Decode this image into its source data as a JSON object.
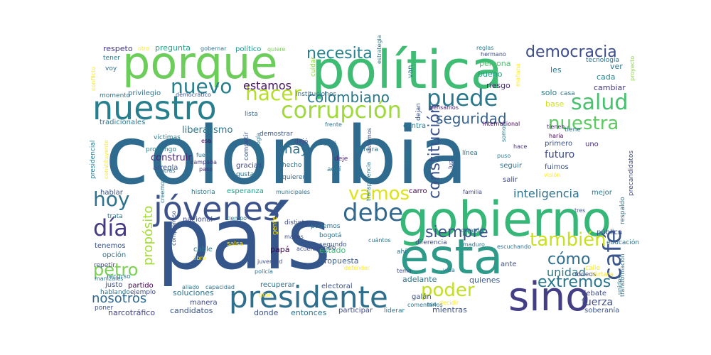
{
  "words": [
    {
      "text": "país",
      "color": "#34568b"
    },
    {
      "text": "colombia",
      "color": "#2e6b8e"
    },
    {
      "text": "gobierno",
      "color": "#35b778"
    },
    {
      "text": "política",
      "color": "#3fbc73"
    },
    {
      "text": "porque",
      "color": "#6ccd5a"
    },
    {
      "text": "esta",
      "color": "#2e9a8a"
    },
    {
      "text": "sino",
      "color": "#433e85"
    },
    {
      "text": "presidente",
      "color": "#2e6f8e"
    },
    {
      "text": "jóvenes",
      "color": "#3b528b"
    },
    {
      "text": "nuestro",
      "color": "#277f8e"
    },
    {
      "text": "corrupción",
      "color": "#9fda3a"
    },
    {
      "text": "debe",
      "color": "#31688e"
    },
    {
      "text": "café",
      "color": "#3a548c"
    },
    {
      "text": "nuestra",
      "color": "#5ec962"
    },
    {
      "text": "salud",
      "color": "#48c16e"
    },
    {
      "text": "hacer",
      "color": "#b5de2b"
    },
    {
      "text": "nuevo",
      "color": "#277f8e"
    },
    {
      "text": "vamos",
      "color": "#dde318"
    },
    {
      "text": "también",
      "color": "#c8e020"
    },
    {
      "text": "día",
      "color": "#443a83"
    },
    {
      "text": "puede",
      "color": "#2a788e"
    },
    {
      "text": "petro",
      "color": "#7ad151"
    },
    {
      "text": "poder",
      "color": "#c2df23"
    },
    {
      "text": "hoy",
      "color": "#2c728e"
    },
    {
      "text": "necesita",
      "color": "#26828e"
    },
    {
      "text": "democracia",
      "color": "#3d4d8a"
    },
    {
      "text": "colombiano",
      "color": "#2a788e"
    },
    {
      "text": "constitución",
      "color": "#3a538b"
    },
    {
      "text": "seguridad",
      "color": "#355f8d"
    },
    {
      "text": "siempre",
      "color": "#3b528b"
    },
    {
      "text": "extremos",
      "color": "#2a768e"
    },
    {
      "text": "propósito",
      "color": "#a5db36"
    },
    {
      "text": "cómo",
      "color": "#2f6c8e"
    },
    {
      "text": "inteligencia",
      "color": "#2c728e"
    },
    {
      "text": "nosotros",
      "color": "#31688e"
    },
    {
      "text": "estamos",
      "color": "#471365"
    },
    {
      "text": "hay",
      "color": "#2d708e"
    },
    {
      "text": "unidad",
      "color": "#2a788e"
    },
    {
      "text": "liberalismo",
      "color": "#2a768e"
    },
    {
      "text": "construir",
      "color": "#482576"
    },
    {
      "text": "futuro",
      "color": "#3e4a89"
    },
    {
      "text": "fuerza",
      "color": "#3e4a89"
    },
    {
      "text": "candidatos",
      "color": "#3a538b"
    },
    {
      "text": "narcotráfico",
      "color": "#424186"
    },
    {
      "text": "mientras",
      "color": "#3b528b"
    },
    {
      "text": "soluciones",
      "color": "#2c728e"
    },
    {
      "text": "adelante",
      "color": "#2b758e"
    },
    {
      "text": "quienes",
      "color": "#38598c"
    },
    {
      "text": "estado",
      "color": "#3bbb75"
    },
    {
      "text": "propuesta",
      "color": "#38598c"
    },
    {
      "text": "papá",
      "color": "#440154"
    },
    {
      "text": "pregunta",
      "color": "#20a486"
    },
    {
      "text": "respeto",
      "color": "#443983"
    },
    {
      "text": "gobernar",
      "color": "#2b748e"
    },
    {
      "text": "político",
      "color": "#20928c"
    },
    {
      "text": "quiere",
      "color": "#7ad151"
    },
    {
      "text": "estrategia",
      "color": "#2a788e"
    },
    {
      "text": "reglas",
      "color": "#287c8e"
    },
    {
      "text": "hermano",
      "color": "#3e4a89"
    },
    {
      "text": "persona",
      "color": "#4cc26c"
    },
    {
      "text": "bueno",
      "color": "#1f9f88"
    },
    {
      "text": "riesgo",
      "color": "#482475"
    },
    {
      "text": "cada",
      "color": "#26828e"
    },
    {
      "text": "solo",
      "color": "#27808e"
    },
    {
      "text": "casa",
      "color": "#2c728e"
    },
    {
      "text": "base",
      "color": "#d0e11c"
    },
    {
      "text": "les",
      "color": "#2a788e"
    },
    {
      "text": "ver",
      "color": "#2b758e"
    },
    {
      "text": "tecnología",
      "color": "#2e6e8e"
    },
    {
      "text": "cambiar",
      "color": "#453781"
    },
    {
      "text": "proyecto",
      "color": "#8bd646"
    },
    {
      "text": "conflicto",
      "color": "#fde725"
    },
    {
      "text": "tener",
      "color": "#2a788e"
    },
    {
      "text": "voy",
      "color": "#31688e"
    },
    {
      "text": "momento",
      "color": "#2b748e"
    },
    {
      "text": "privilegio",
      "color": "#2c728e"
    },
    {
      "text": "democrático",
      "color": "#3b528b"
    },
    {
      "text": "tradicionales",
      "color": "#2a788e"
    },
    {
      "text": "lista",
      "color": "#31688e"
    },
    {
      "text": "instituciones",
      "color": "#2c728e"
    },
    {
      "text": "cuidar",
      "color": "#8bd646"
    },
    {
      "text": "otro",
      "color": "#fde725"
    },
    {
      "text": "van",
      "color": "#2b748e"
    },
    {
      "text": "mañana",
      "color": "#fde725"
    },
    {
      "text": "pensamos",
      "color": "#482173"
    },
    {
      "text": "dejan",
      "color": "#3b528b"
    },
    {
      "text": "frente",
      "color": "#2c728e"
    },
    {
      "text": "contra",
      "color": "#287c8e"
    },
    {
      "text": "internacional",
      "color": "#440154"
    },
    {
      "text": "tiene",
      "color": "#31688e"
    },
    {
      "text": "tienen",
      "color": "#482878"
    },
    {
      "text": "haría",
      "color": "#440154"
    },
    {
      "text": "primero",
      "color": "#3b528b"
    },
    {
      "text": "uno",
      "color": "#472d7b"
    },
    {
      "text": "precandidatos",
      "color": "#3e4a89"
    },
    {
      "text": "respaldo",
      "color": "#2c728e"
    },
    {
      "text": "presidencial",
      "color": "#2a788e"
    },
    {
      "text": "constituyente",
      "color": "#fde725"
    },
    {
      "text": "víctimas",
      "color": "#2a788e"
    },
    {
      "text": "propongo",
      "color": "#287c8e"
    },
    {
      "text": "arregla",
      "color": "#3a548c"
    },
    {
      "text": "fuera",
      "color": "#2a788e"
    },
    {
      "text": "campaña",
      "color": "#443983"
    },
    {
      "text": "paso",
      "color": "#472d7b"
    },
    {
      "text": "atrás",
      "color": "#2c728e"
    },
    {
      "text": "esa",
      "color": "#440154"
    },
    {
      "text": "competir",
      "color": "#3b528b"
    },
    {
      "text": "metodología",
      "color": "#2a788e"
    },
    {
      "text": "demostrar",
      "color": "#39568c"
    },
    {
      "text": "dejó",
      "color": "#3e4a89"
    },
    {
      "text": "gracias",
      "color": "#3f4889"
    },
    {
      "text": "hecho",
      "color": "#2c728e"
    },
    {
      "text": "salió",
      "color": "#2c728e"
    },
    {
      "text": "deje",
      "color": "#482878"
    },
    {
      "text": "aquí",
      "color": "#2c728e"
    },
    {
      "text": "gustavo",
      "color": "#2c728e"
    },
    {
      "text": "quieren",
      "color": "#31688e"
    },
    {
      "text": "pereira",
      "color": "#2c728e"
    },
    {
      "text": "soñamos",
      "color": "#3b528b"
    },
    {
      "text": "transparencia",
      "color": "#2c728e"
    },
    {
      "text": "datos",
      "color": "#2a788e"
    },
    {
      "text": "luz",
      "color": "#3e4a89"
    },
    {
      "text": "línea",
      "color": "#2c728e"
    },
    {
      "text": "puso",
      "color": "#2a788e"
    },
    {
      "text": "hace",
      "color": "#472d7b"
    },
    {
      "text": "somos",
      "color": "#2a788e"
    },
    {
      "text": "seguir",
      "color": "#2c728e"
    },
    {
      "text": "salir",
      "color": "#3e4a89"
    },
    {
      "text": "fuimos",
      "color": "#3b528b"
    },
    {
      "text": "visión",
      "color": "#fde725"
    },
    {
      "text": "hablar",
      "color": "#3b528b"
    },
    {
      "text": "trata",
      "color": "#2c728e"
    },
    {
      "text": "creemos",
      "color": "#2c728e"
    },
    {
      "text": "historia",
      "color": "#2a788e"
    },
    {
      "text": "esperanza",
      "color": "#1f9e89"
    },
    {
      "text": "municipales",
      "color": "#2c728e"
    },
    {
      "text": "carro",
      "color": "#440154"
    },
    {
      "text": "familia",
      "color": "#3e4a89"
    },
    {
      "text": "mejor",
      "color": "#2a788e"
    },
    {
      "text": "tres",
      "color": "#3b528b"
    },
    {
      "text": "nacional",
      "color": "#3e4a89"
    },
    {
      "text": "tiempo",
      "color": "#2a788e"
    },
    {
      "text": "compromiso",
      "color": "#3b528b"
    },
    {
      "text": "gente",
      "color": "#fde725"
    },
    {
      "text": "distinta",
      "color": "#3e4a89"
    },
    {
      "text": "podemos",
      "color": "#2c728e"
    },
    {
      "text": "manos",
      "color": "#3e4a89"
    },
    {
      "text": "bogotá",
      "color": "#2c728e"
    },
    {
      "text": "segundo",
      "color": "#3b528b"
    },
    {
      "text": "cuántos",
      "color": "#2c728e"
    },
    {
      "text": "diferencia",
      "color": "#3e4a89"
    },
    {
      "text": "maduro",
      "color": "#2c728e"
    },
    {
      "text": "corazón",
      "color": "#2a788e"
    },
    {
      "text": "escuchando",
      "color": "#2c728e"
    },
    {
      "text": "pública",
      "color": "#3b528b"
    },
    {
      "text": "educación",
      "color": "#2c728e"
    },
    {
      "text": "tenemos",
      "color": "#3b528b"
    },
    {
      "text": "opción",
      "color": "#2c728e"
    },
    {
      "text": "repetir",
      "color": "#3e4a89"
    },
    {
      "text": "cable",
      "color": "#2a788e"
    },
    {
      "text": "libre",
      "color": "#fde725"
    },
    {
      "text": "salsa",
      "color": "#fde725"
    },
    {
      "text": "mundo",
      "color": "#3b528b"
    },
    {
      "text": "ahí",
      "color": "#2c728e"
    },
    {
      "text": "juventud",
      "color": "#3e4a89"
    },
    {
      "text": "policía",
      "color": "#2c728e"
    },
    {
      "text": "defender",
      "color": "#fde725"
    },
    {
      "text": "tema",
      "color": "#3e4a89"
    },
    {
      "text": "vida",
      "color": "#2a788e"
    },
    {
      "text": "ante",
      "color": "#3b528b"
    },
    {
      "text": "calle",
      "color": "#fde725"
    },
    {
      "text": "rodeos",
      "color": "#3e4a89"
    },
    {
      "text": "tártara",
      "color": "#fde725"
    },
    {
      "text": "transformación",
      "color": "#2c728e"
    },
    {
      "text": "recurso",
      "color": "#2a788e"
    },
    {
      "text": "justo",
      "color": "#3b528b"
    },
    {
      "text": "partido",
      "color": "#440154"
    },
    {
      "text": "hablando",
      "color": "#2c728e"
    },
    {
      "text": "ejemplo",
      "color": "#3e4a89"
    },
    {
      "text": "poner",
      "color": "#3b528b"
    },
    {
      "text": "aliado",
      "color": "#2a788e"
    },
    {
      "text": "capacidad",
      "color": "#2c728e"
    },
    {
      "text": "electoral",
      "color": "#3b528b"
    },
    {
      "text": "manera",
      "color": "#3e4a89"
    },
    {
      "text": "recuperar",
      "color": "#2c728e"
    },
    {
      "text": "gran",
      "color": "#fde725"
    },
    {
      "text": "galán",
      "color": "#3b528b"
    },
    {
      "text": "ese",
      "color": "#2a788e"
    },
    {
      "text": "comentarios",
      "color": "#2c728e"
    },
    {
      "text": "decidir",
      "color": "#fde725"
    },
    {
      "text": "debate",
      "color": "#3e4a89"
    },
    {
      "text": "unidos",
      "color": "#2c728e"
    },
    {
      "text": "donde",
      "color": "#3b528b"
    },
    {
      "text": "entonces",
      "color": "#2c728e"
    },
    {
      "text": "participar",
      "color": "#3e4a89"
    },
    {
      "text": "liderar",
      "color": "#2a788e"
    },
    {
      "text": "soberanía",
      "color": "#3b528b"
    },
    {
      "text": "manizales",
      "color": "#2c728e"
    },
    {
      "text": "acuerdo",
      "color": "#3e4a89"
    }
  ]
}
